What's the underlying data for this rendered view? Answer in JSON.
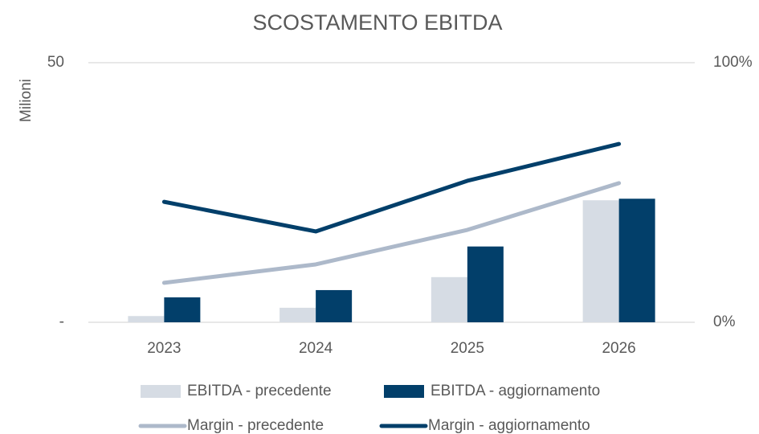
{
  "chart_data": {
    "type": "bar",
    "title": "SCOSTAMENTO EBITDA",
    "y_label": "Milioni",
    "categories": [
      "2023",
      "2024",
      "2025",
      "2026"
    ],
    "series": [
      {
        "name": "EBITDA - precedente",
        "type": "bar",
        "color": "#d6dce4",
        "values": [
          1.2,
          2.8,
          8.7,
          23.5
        ]
      },
      {
        "name": "EBITDA - aggiornamento",
        "type": "bar",
        "color": "#023f6a",
        "values": [
          4.8,
          6.2,
          14.6,
          23.8
        ]
      },
      {
        "name": "Margin - precedente",
        "type": "line",
        "axis": "y2",
        "color": "#adb9ca",
        "values": [
          15.2,
          22.3,
          35.6,
          53.6
        ]
      },
      {
        "name": "Margin - aggiornamento",
        "type": "line",
        "axis": "y2",
        "color": "#023f6a",
        "values": [
          46.4,
          35.0,
          54.5,
          68.7
        ]
      }
    ],
    "ylim": [
      0,
      50
    ],
    "yticks": [
      {
        "value": 0,
        "label": "-"
      },
      50
    ],
    "y2lim": [
      0,
      100
    ],
    "y2ticks": [
      {
        "value": 0,
        "label": "0%"
      },
      {
        "value": 100,
        "label": "100%"
      }
    ],
    "grid": true,
    "legend": "bottom"
  }
}
